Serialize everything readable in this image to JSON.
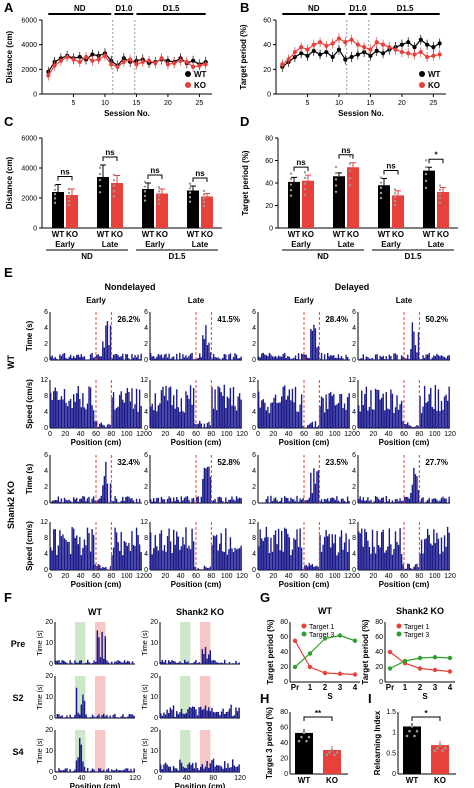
{
  "panel_letters": [
    "A",
    "B",
    "C",
    "D",
    "E",
    "F",
    "G",
    "H",
    "I"
  ],
  "colors": {
    "wt": "#000000",
    "ko": "#e8413c",
    "trace": "#1a1a8c",
    "t1": "#e8413c",
    "t3": "#2ca02c",
    "green_band": "#cde8c8",
    "red_band": "#f7c6c6"
  },
  "chart_data": [
    {
      "id": "A",
      "type": "line",
      "ylabel": "Distance (cm)",
      "xlabel": "Session No.",
      "phases": [
        "ND",
        "D1.0",
        "D1.5"
      ],
      "xticks": [
        5,
        10,
        15,
        20,
        25
      ],
      "ylim": [
        0,
        6000
      ],
      "yticks": [
        0,
        2000,
        4000,
        6000
      ],
      "legend": [
        "WT",
        "KO"
      ],
      "series": [
        {
          "name": "WT",
          "values": [
            1800,
            2600,
            2900,
            3100,
            2900,
            3000,
            2800,
            3200,
            3100,
            3300,
            2700,
            2300,
            2900,
            2600,
            2700,
            2800,
            2500,
            2600,
            2800,
            2700,
            2600,
            2900,
            2500,
            2700,
            2400,
            2600
          ]
        },
        {
          "name": "KO",
          "values": [
            1500,
            2300,
            2700,
            3000,
            2800,
            2600,
            3000,
            2700,
            2800,
            3100,
            2400,
            2200,
            2600,
            2800,
            2400,
            2600,
            2700,
            2500,
            2900,
            2400,
            2500,
            2700,
            2600,
            2200,
            2300,
            2400
          ]
        }
      ]
    },
    {
      "id": "B",
      "type": "line",
      "ylabel": "Target period (%)",
      "xlabel": "Session No.",
      "phases": [
        "ND",
        "D1.0",
        "D1.5"
      ],
      "xticks": [
        5,
        10,
        15,
        20,
        25
      ],
      "ylim": [
        0,
        60
      ],
      "yticks": [
        0,
        20,
        40,
        60
      ],
      "legend": [
        "WT",
        "KO"
      ],
      "series": [
        {
          "name": "WT",
          "values": [
            22,
            26,
            30,
            33,
            31,
            35,
            32,
            34,
            30,
            36,
            28,
            30,
            32,
            34,
            31,
            35,
            33,
            36,
            38,
            40,
            42,
            38,
            44,
            40,
            38,
            41
          ]
        },
        {
          "name": "KO",
          "values": [
            24,
            28,
            34,
            38,
            36,
            40,
            42,
            39,
            41,
            45,
            42,
            44,
            40,
            38,
            36,
            42,
            40,
            38,
            36,
            34,
            33,
            32,
            34,
            30,
            31,
            32
          ]
        }
      ]
    },
    {
      "id": "C",
      "type": "bar",
      "ylabel": "Distance (cm)",
      "ylim": [
        0,
        6000
      ],
      "yticks": [
        0,
        2000,
        4000,
        6000
      ],
      "categories": [
        "WT",
        "KO",
        "WT",
        "KO",
        "WT",
        "KO",
        "WT",
        "KO"
      ],
      "groups": [
        "Early",
        "Late",
        "Early",
        "Late"
      ],
      "phases": [
        "ND",
        "D1.5"
      ],
      "values": [
        2400,
        2200,
        3400,
        3000,
        2600,
        2300,
        2500,
        2100
      ],
      "errors": [
        500,
        400,
        800,
        500,
        400,
        300,
        300,
        200
      ],
      "sig": [
        "ns",
        "ns",
        "ns",
        "ns"
      ]
    },
    {
      "id": "D",
      "type": "bar",
      "ylabel": "Target period (%)",
      "ylim": [
        0,
        80
      ],
      "yticks": [
        0,
        20,
        40,
        60,
        80
      ],
      "categories": [
        "WT",
        "KO",
        "WT",
        "KO",
        "WT",
        "KO",
        "WT",
        "KO"
      ],
      "groups": [
        "Early",
        "Late",
        "Early",
        "Late"
      ],
      "phases": [
        "ND",
        "D1.5"
      ],
      "values": [
        41,
        42,
        46,
        54,
        38,
        29,
        51,
        32
      ],
      "errors": [
        4,
        5,
        3,
        4,
        6,
        4,
        3,
        4
      ],
      "sig": [
        "ns",
        "ns",
        "ns",
        "*"
      ]
    },
    {
      "id": "E",
      "type": "bar",
      "conditions": [
        "Nondelayed",
        "Delayed"
      ],
      "epochs": [
        "Early",
        "Late",
        "Early",
        "Late"
      ],
      "genotypes": [
        "WT",
        "Shank2 KO"
      ],
      "row_ylabels": [
        "Time (s)",
        "Speed (cm/s)"
      ],
      "time_ylim": [
        0,
        6
      ],
      "speed_ylim": [
        0,
        12
      ],
      "xticks": [
        0,
        20,
        40,
        60,
        80,
        100,
        120
      ],
      "xlabel": "Position (cm)",
      "percentages": [
        "26.2%",
        "41.5%",
        "28.4%",
        "50.2%",
        "32.4%",
        "52.8%",
        "23.5%",
        "27.7%"
      ]
    },
    {
      "id": "F",
      "type": "bar",
      "columns": [
        "WT",
        "Shank2 KO"
      ],
      "rows": [
        "Pre",
        "S2",
        "S4"
      ],
      "ylabel": "Time (s)",
      "xlabel": "Position (cm)",
      "xticks": [
        0,
        40,
        80,
        120
      ],
      "yticks": [
        0,
        10,
        20
      ]
    },
    {
      "id": "G",
      "type": "line",
      "titles": [
        "WT",
        "Shank2 KO"
      ],
      "ylabel": "Target period (%)",
      "x": [
        "Pr",
        "1",
        "2",
        "3",
        "4"
      ],
      "xlabel": "S",
      "ylim": [
        0,
        80
      ],
      "yticks": [
        0,
        20,
        40,
        60,
        80
      ],
      "legend": [
        "Target 1",
        "Target 3"
      ],
      "series": [
        {
          "name": "Target 1",
          "values": [
            55,
            20,
            12,
            11,
            10
          ]
        },
        {
          "name": "Target 3",
          "values": [
            20,
            38,
            58,
            62,
            55
          ]
        },
        {
          "name": "Target 1",
          "values": [
            40,
            25,
            18,
            16,
            14
          ]
        },
        {
          "name": "Target 3",
          "values": [
            18,
            28,
            32,
            33,
            32
          ]
        }
      ]
    },
    {
      "id": "H",
      "type": "bar",
      "ylabel": "Target 3 period (%)",
      "categories": [
        "WT",
        "KO"
      ],
      "values": [
        53,
        31
      ],
      "errors": [
        5,
        5
      ],
      "ylim": [
        0,
        80
      ],
      "yticks": [
        0,
        20,
        40,
        60,
        80
      ],
      "sig": "**"
    },
    {
      "id": "I",
      "type": "bar",
      "ylabel": "Relearning Index",
      "categories": [
        "WT",
        "KO"
      ],
      "values": [
        1.15,
        0.7
      ],
      "errors": [
        0.08,
        0.1
      ],
      "ylim": [
        0,
        1.5
      ],
      "yticks": [
        0,
        0.5,
        1.0,
        1.5
      ],
      "sig": "*"
    }
  ]
}
